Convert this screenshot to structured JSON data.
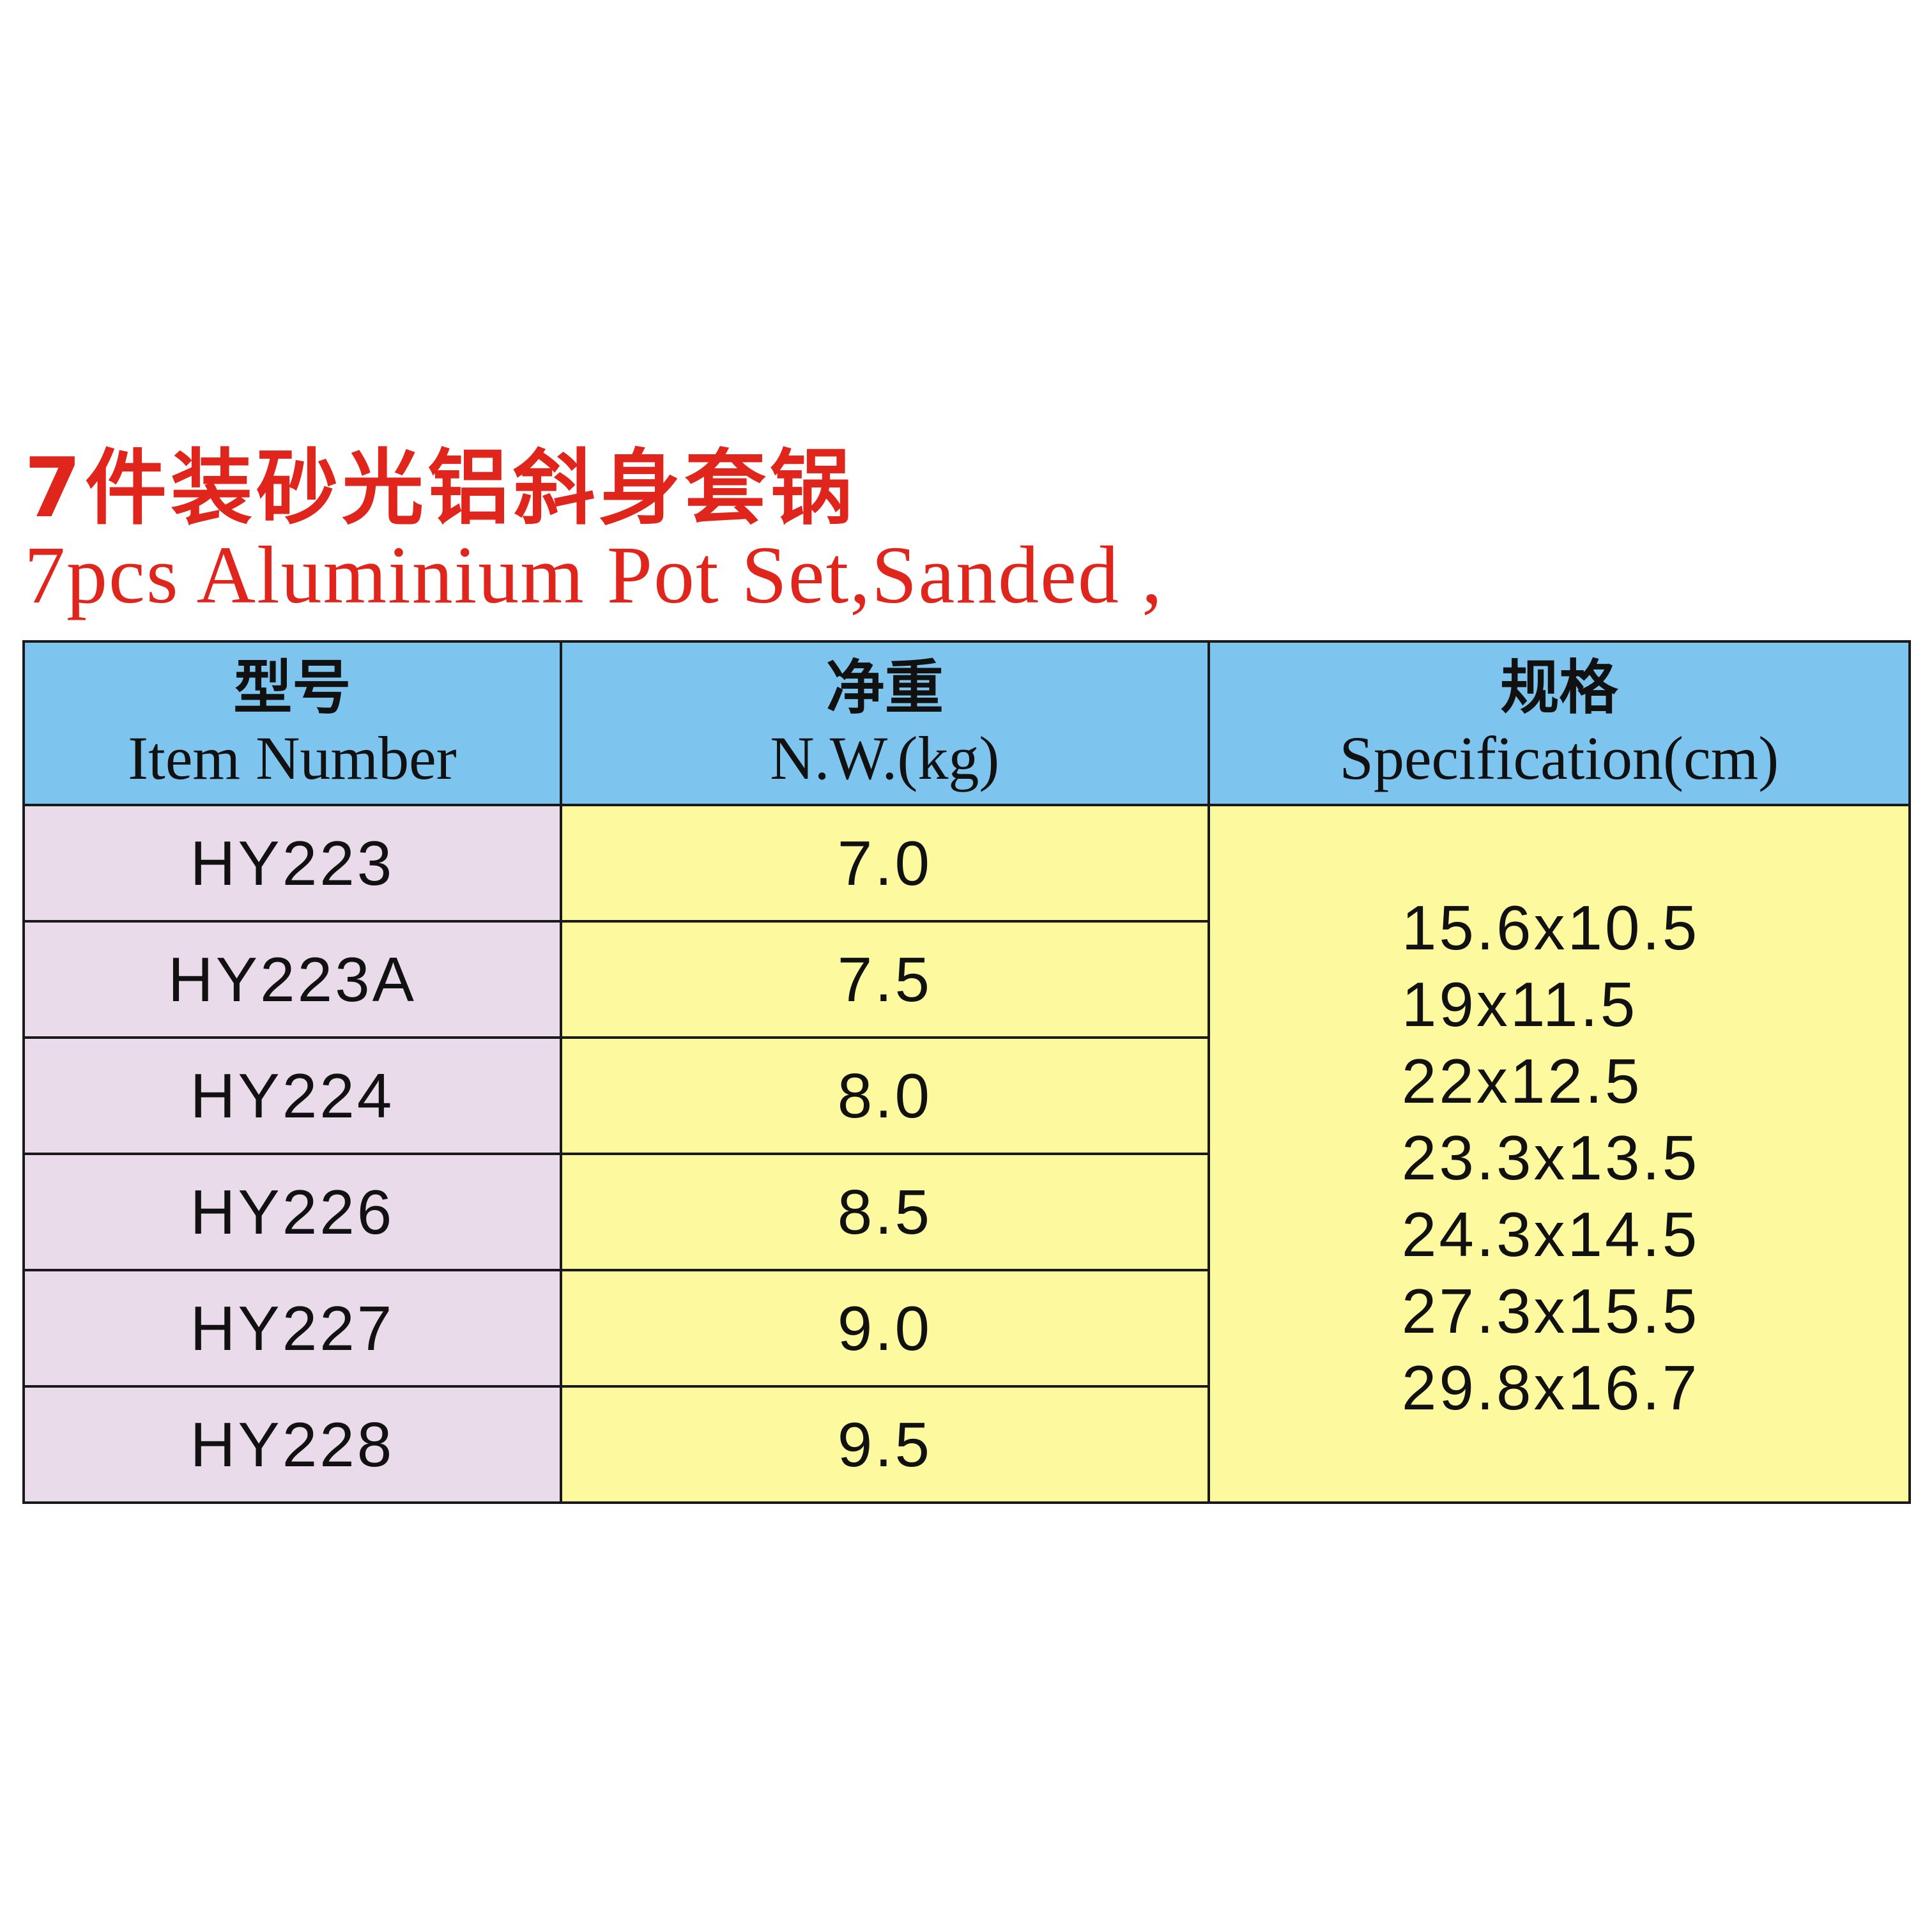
{
  "title_cn": "7件装砂光铝斜身套锅",
  "title_en": "7pcs Aluminium Pot Set,Sanded ,",
  "table": {
    "headers": [
      {
        "cn": "型号",
        "en": "Item Number"
      },
      {
        "cn": "净重",
        "en": "N.W.(kg)"
      },
      {
        "cn": "规格",
        "en": "Specification(cm)"
      }
    ],
    "rows": [
      {
        "item": "HY223",
        "nw": "7.0"
      },
      {
        "item": "HY223A",
        "nw": "7.5"
      },
      {
        "item": "HY224",
        "nw": "8.0"
      },
      {
        "item": "HY226",
        "nw": "8.5"
      },
      {
        "item": "HY227",
        "nw": "9.0"
      },
      {
        "item": "HY228",
        "nw": "9.5"
      }
    ],
    "specs": [
      "15.6x10.5",
      "19x11.5",
      "22x12.5",
      "23.3x13.5",
      "24.3x14.5",
      "27.3x15.5",
      "29.8x16.7"
    ]
  },
  "colors": {
    "title": "#e0261c",
    "header": "#7dc4ee",
    "item_col": "#e9dbea",
    "value_col": "#fdf99e"
  }
}
